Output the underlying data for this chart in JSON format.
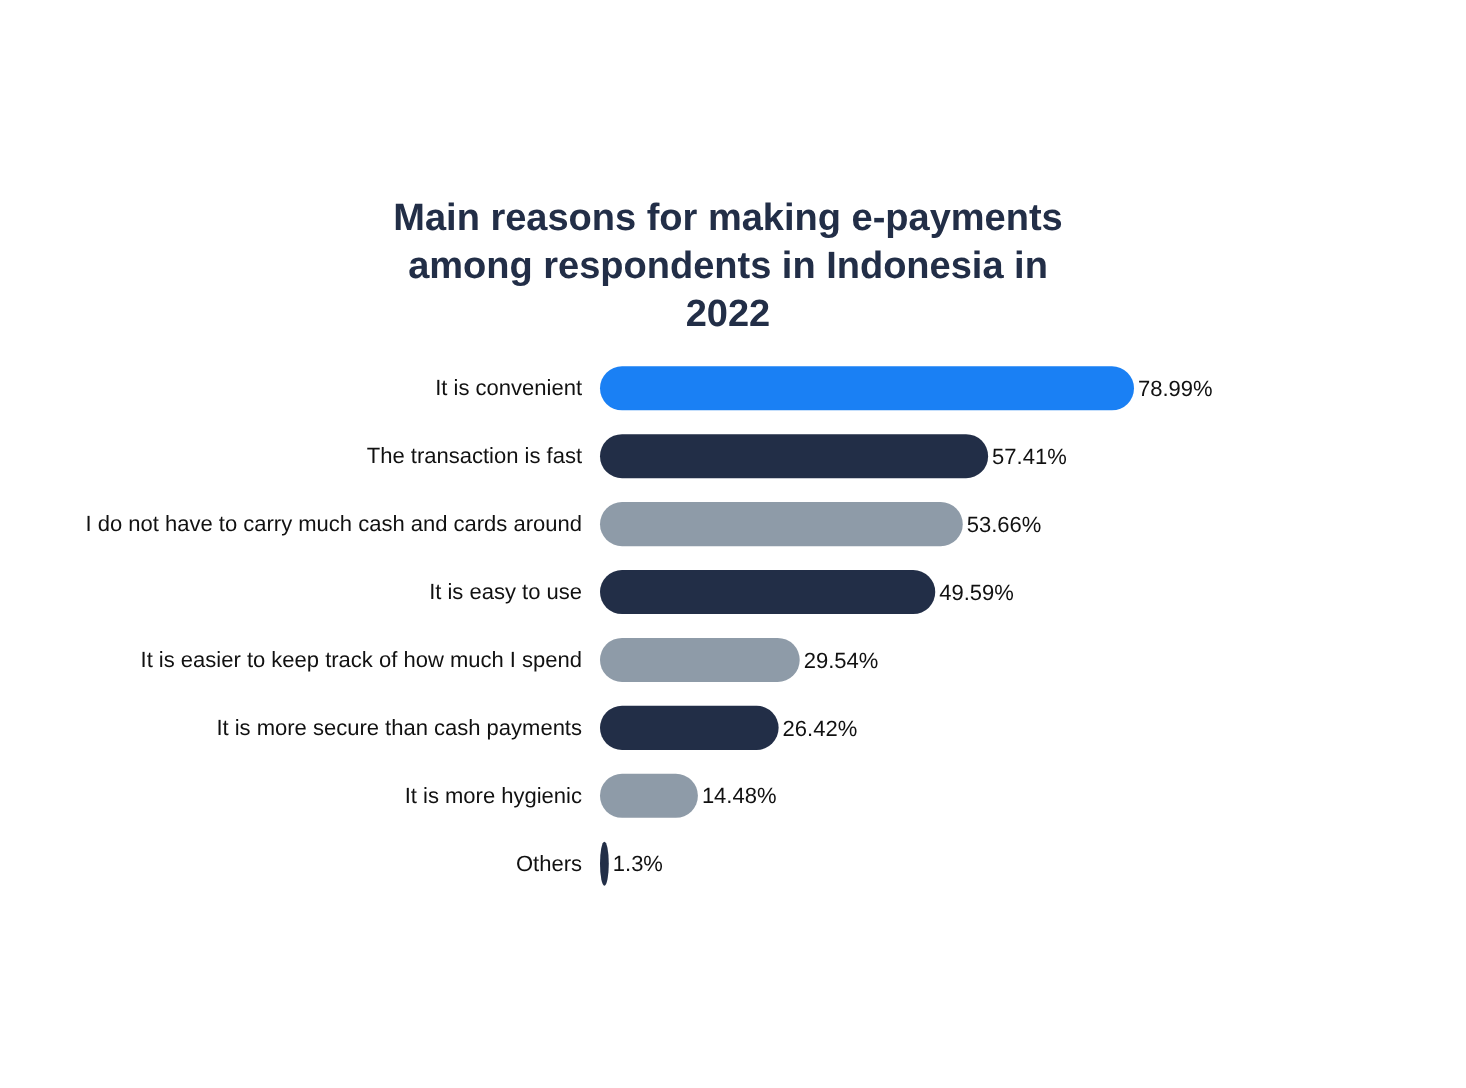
{
  "chart_data": {
    "type": "bar",
    "orientation": "horizontal",
    "title": "Main reasons for making e-payments among respondents in Indonesia in 2022",
    "categories": [
      "It is convenient",
      "The transaction is fast",
      "I do not have to carry much cash and cards around",
      "It is easy to use",
      "It is easier to keep track of how much I spend",
      "It is more secure than cash payments",
      "It is more hygienic",
      "Others"
    ],
    "values": [
      78.99,
      57.41,
      53.66,
      49.59,
      29.54,
      26.42,
      14.48,
      1.3
    ],
    "value_labels": [
      "78.99%",
      "57.41%",
      "53.66%",
      "49.59%",
      "29.54%",
      "26.42%",
      "14.48%",
      "1.3%"
    ],
    "colors": [
      "#1a80f4",
      "#222e47",
      "#8e9ba8",
      "#222e47",
      "#8e9ba8",
      "#222e47",
      "#8e9ba8",
      "#222e47"
    ]
  }
}
